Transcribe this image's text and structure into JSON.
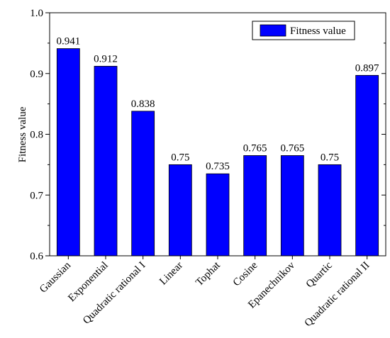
{
  "chart_data": {
    "type": "bar",
    "categories": [
      "Gaussian",
      "Exponential",
      "Quadratic rational I",
      "Linear",
      "Tophat",
      "Cosine",
      "Epanechnikov",
      "Quartic",
      "Quadratic rational II"
    ],
    "values": [
      0.941,
      0.912,
      0.838,
      0.75,
      0.735,
      0.765,
      0.765,
      0.75,
      0.897
    ],
    "value_labels": [
      "0.941",
      "0.912",
      "0.838",
      "0.75",
      "0.735",
      "0.765",
      "0.765",
      "0.75",
      "0.897"
    ],
    "series": [
      {
        "name": "Fitness value",
        "values": [
          0.941,
          0.912,
          0.838,
          0.75,
          0.735,
          0.765,
          0.765,
          0.75,
          0.897
        ]
      }
    ],
    "title": "",
    "xlabel": "",
    "ylabel": "Fitness value",
    "ylim": [
      0.6,
      1.0
    ],
    "yticks": [
      0.6,
      0.7,
      0.8,
      0.9,
      1.0
    ],
    "ytick_labels": [
      "0.6",
      "0.7",
      "0.8",
      "0.9",
      "1.0"
    ],
    "grid": false,
    "legend": {
      "position": "top-right",
      "label": "Fitness value"
    },
    "bar_color": "#0000ff"
  }
}
